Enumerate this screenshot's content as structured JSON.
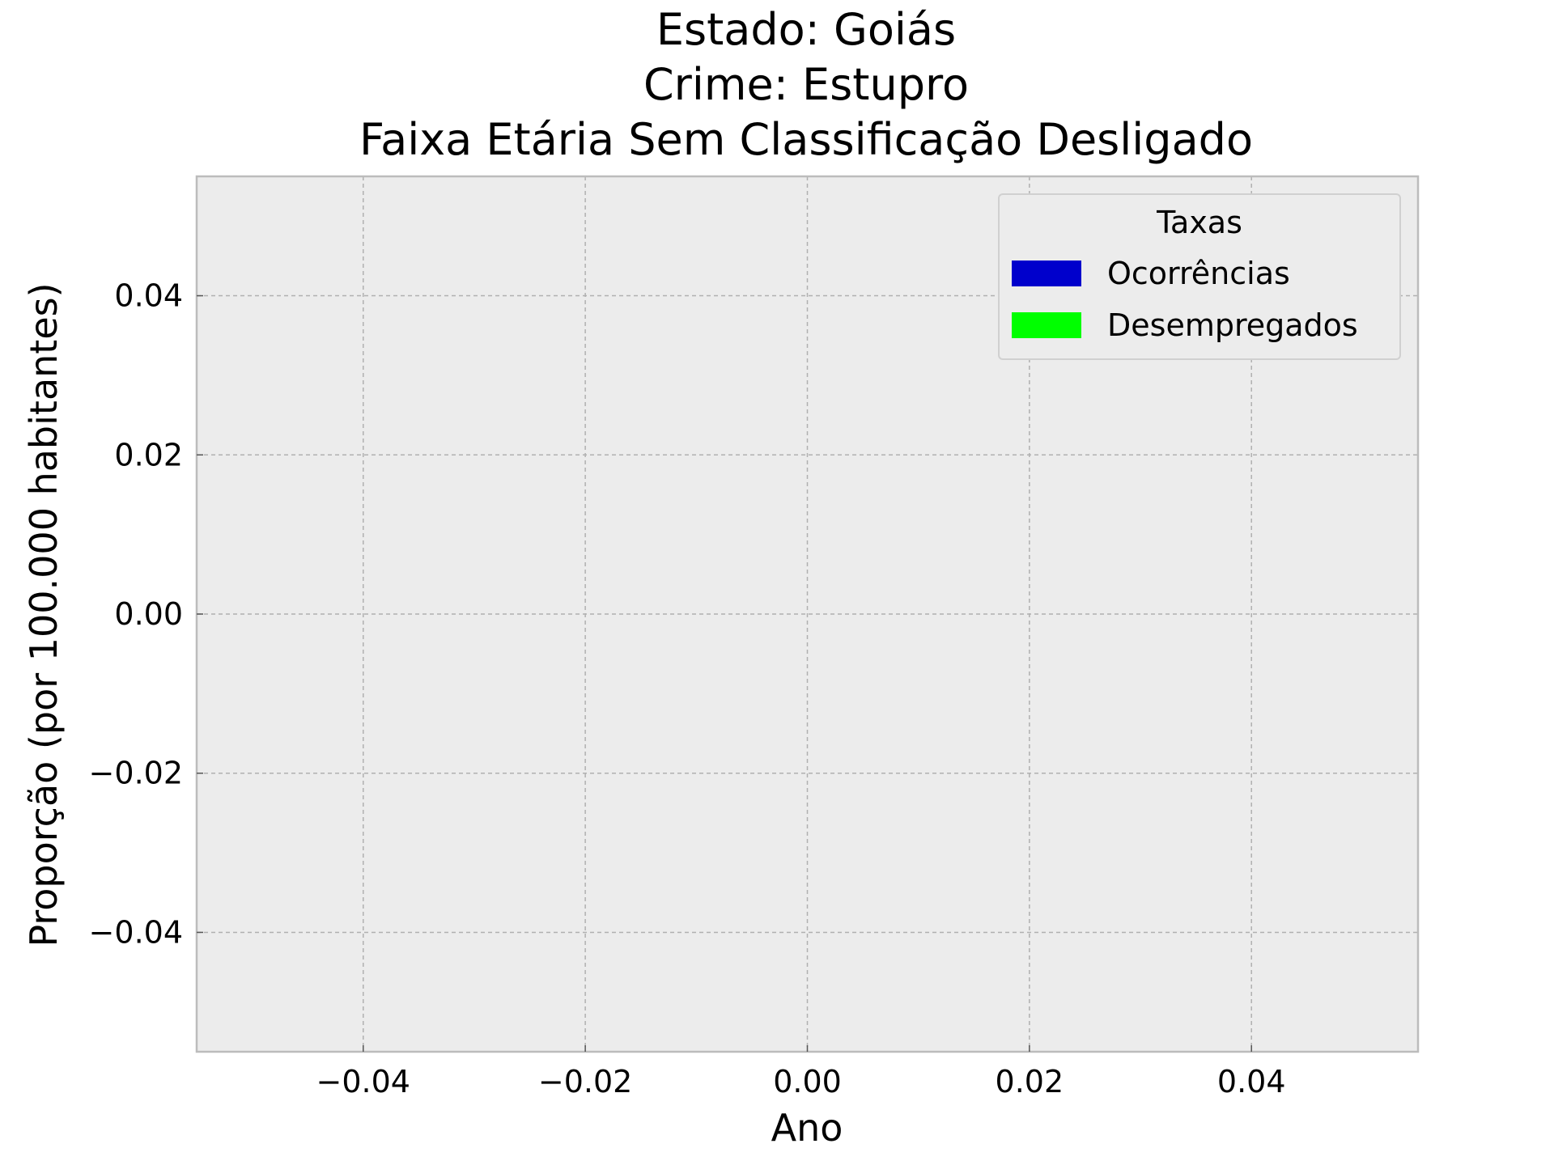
{
  "chart_data": {
    "type": "bar",
    "title_lines": [
      "Estado: Goiás",
      "Crime: Estupro",
      "Faixa Etária Sem Classificação   Desligado"
    ],
    "xlabel": "Ano",
    "ylabel": "Proporção (por 100.000 habitantes)",
    "xlim": [
      -0.055,
      0.055
    ],
    "ylim": [
      -0.055,
      0.055
    ],
    "xticks": [
      -0.04,
      -0.02,
      0.0,
      0.02,
      0.04
    ],
    "yticks": [
      -0.04,
      -0.02,
      0.0,
      0.02,
      0.04
    ],
    "xtick_labels": [
      "−0.04",
      "−0.02",
      "0.00",
      "0.02",
      "0.04"
    ],
    "ytick_labels": [
      "−0.04",
      "−0.02",
      "0.00",
      "0.02",
      "0.04"
    ],
    "grid": true,
    "legend": {
      "title": "Taxas",
      "placement": "top-right",
      "entries": [
        {
          "name": "Ocorrências",
          "color": "#0000cc"
        },
        {
          "name": "Desempregados",
          "color": "#00ff00"
        }
      ]
    },
    "series": [
      {
        "name": "Ocorrências",
        "values": []
      },
      {
        "name": "Desempregados",
        "values": []
      }
    ],
    "categories": []
  },
  "colors": {
    "plot_background": "#ececec",
    "frame": "#bcbcbc",
    "grid": "#b0b0b0"
  }
}
